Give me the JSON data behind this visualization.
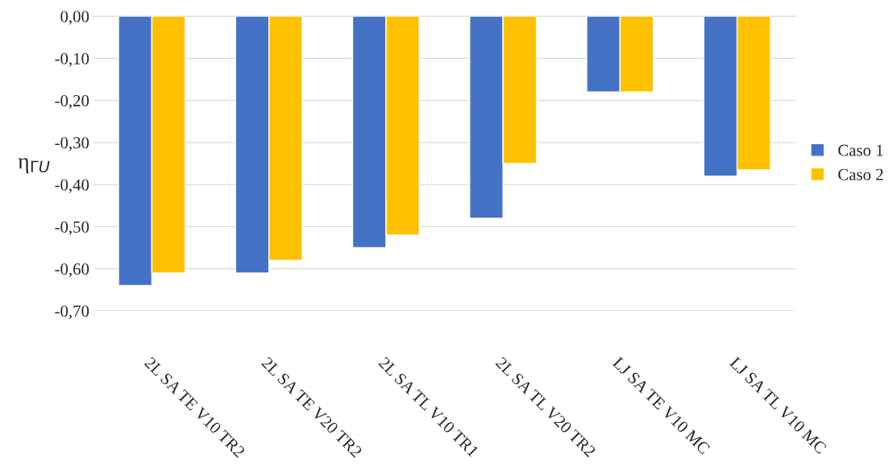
{
  "chart_data": {
    "type": "bar",
    "ylabel": "η$_{ΓU}$",
    "categories": [
      "2L SA TE V10 TR2",
      "2L SA TE V20 TR2",
      "2L SA TL V10 TR1",
      "2L SA TL V20 TR2",
      "LJ SA TE V10 MC",
      "LJ SA TL V10 MC"
    ],
    "series": [
      {
        "name": "Caso 1",
        "color": "#4472c4",
        "values": [
          -0.64,
          -0.61,
          -0.55,
          -0.48,
          -0.18,
          -0.38
        ]
      },
      {
        "name": "Caso 2",
        "color": "#ffc000",
        "values": [
          -0.61,
          -0.58,
          -0.52,
          -0.35,
          -0.18,
          -0.365
        ]
      }
    ],
    "ylim": [
      -0.7,
      0
    ],
    "yticks": [
      {
        "value": 0,
        "label": "0,00"
      },
      {
        "value": -0.1,
        "label": "-0,10"
      },
      {
        "value": -0.2,
        "label": "-0,20"
      },
      {
        "value": -0.3,
        "label": "-0,30"
      },
      {
        "value": -0.4,
        "label": "-0,40"
      },
      {
        "value": -0.5,
        "label": "-0,50"
      },
      {
        "value": -0.6,
        "label": "-0,60"
      },
      {
        "value": -0.7,
        "label": "-0,70"
      }
    ],
    "grid": "y",
    "legend": "right"
  }
}
